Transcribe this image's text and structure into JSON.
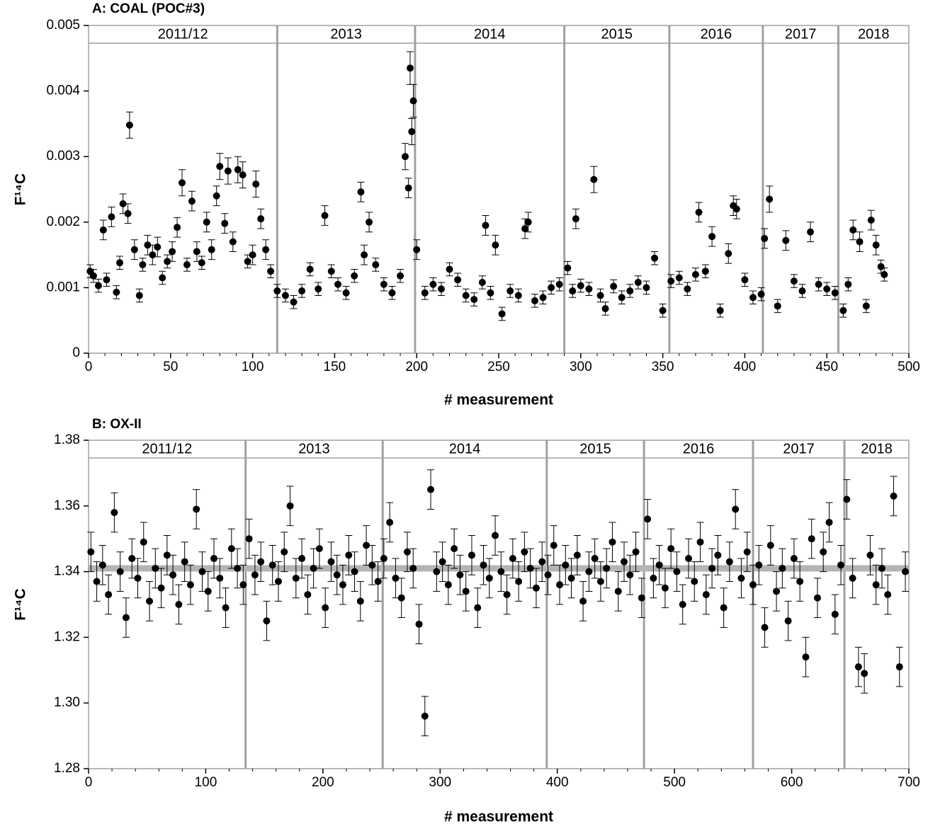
{
  "chart_data": [
    {
      "type": "scatter",
      "title": "A: COAL (POC#3)",
      "x_label": "# measurement",
      "y_label": "F¹⁴C",
      "xlim": [
        0,
        500
      ],
      "xticks": [
        0,
        50,
        100,
        150,
        200,
        250,
        300,
        350,
        400,
        450,
        500
      ],
      "x_minor_step": 10,
      "ylim": [
        0,
        0.005
      ],
      "yticks": [
        0,
        0.001,
        0.002,
        0.003,
        0.004,
        0.005
      ],
      "period_labels": [
        "2011/12",
        "2013",
        "2014",
        "2015",
        "2016",
        "2017",
        "2018"
      ],
      "period_breaks": [
        115,
        199,
        290,
        354,
        411,
        457
      ],
      "color": "#000000",
      "divider_color": "#a0a0a0",
      "x": [
        1,
        3,
        6,
        9,
        11,
        14,
        17,
        19,
        21,
        24,
        25,
        28,
        31,
        33,
        36,
        39,
        42,
        45,
        48,
        51,
        54,
        57,
        60,
        63,
        66,
        69,
        72,
        75,
        78,
        80,
        83,
        85,
        88,
        91,
        94,
        97,
        100,
        102,
        105,
        108,
        111,
        115,
        120,
        125,
        130,
        135,
        140,
        144,
        148,
        152,
        157,
        162,
        166,
        168,
        171,
        175,
        180,
        185,
        190,
        193,
        195,
        196,
        197,
        198,
        200,
        205,
        210,
        215,
        220,
        225,
        230,
        235,
        240,
        242,
        245,
        248,
        252,
        257,
        262,
        266,
        268,
        272,
        277,
        282,
        287,
        292,
        295,
        297,
        300,
        305,
        308,
        312,
        315,
        320,
        325,
        330,
        335,
        340,
        345,
        350,
        355,
        360,
        365,
        370,
        372,
        376,
        380,
        385,
        390,
        393,
        395,
        400,
        405,
        410,
        412,
        415,
        420,
        425,
        430,
        435,
        440,
        445,
        450,
        455,
        460,
        463,
        466,
        470,
        474,
        477,
        480,
        483,
        485
      ],
      "values": [
        0.00125,
        0.00118,
        0.00103,
        0.00188,
        0.00112,
        0.00208,
        0.00093,
        0.00138,
        0.00228,
        0.00213,
        0.00348,
        0.00158,
        0.00088,
        0.00135,
        0.00165,
        0.0015,
        0.00162,
        0.00115,
        0.0014,
        0.00155,
        0.00192,
        0.0026,
        0.00135,
        0.00232,
        0.00155,
        0.00138,
        0.002,
        0.00158,
        0.0024,
        0.00285,
        0.00198,
        0.00278,
        0.0017,
        0.0028,
        0.00272,
        0.0014,
        0.0015,
        0.00258,
        0.00205,
        0.00158,
        0.00125,
        0.00095,
        0.00088,
        0.00078,
        0.00095,
        0.00128,
        0.00098,
        0.0021,
        0.00125,
        0.00105,
        0.00092,
        0.00118,
        0.00246,
        0.0015,
        0.002,
        0.00135,
        0.00105,
        0.00092,
        0.00118,
        0.003,
        0.00252,
        0.00435,
        0.00338,
        0.00385,
        0.00158,
        0.00092,
        0.00105,
        0.00098,
        0.00128,
        0.00112,
        0.00088,
        0.00082,
        0.00108,
        0.00195,
        0.00092,
        0.00165,
        0.0006,
        0.00095,
        0.00088,
        0.0019,
        0.002,
        0.0008,
        0.00085,
        0.001,
        0.00105,
        0.0013,
        0.00095,
        0.00205,
        0.00103,
        0.00098,
        0.00265,
        0.00088,
        0.00068,
        0.00102,
        0.00085,
        0.00095,
        0.00108,
        0.001,
        0.00145,
        0.00065,
        0.0011,
        0.00115,
        0.00098,
        0.0012,
        0.00215,
        0.00125,
        0.00178,
        0.00065,
        0.00152,
        0.00225,
        0.0022,
        0.00112,
        0.00085,
        0.0009,
        0.00175,
        0.00235,
        0.00072,
        0.00172,
        0.0011,
        0.00095,
        0.00185,
        0.00105,
        0.00098,
        0.00092,
        0.00065,
        0.00105,
        0.00188,
        0.0017,
        0.00072,
        0.00203,
        0.00165,
        0.00132,
        0.0012
      ],
      "errors": [
        0.0001,
        0.0001,
        0.0001,
        0.00015,
        0.0001,
        0.00015,
        0.0001,
        0.0001,
        0.00015,
        0.00015,
        0.0002,
        0.00015,
        0.0001,
        0.0001,
        0.00015,
        0.00015,
        0.00015,
        0.0001,
        0.0001,
        0.00015,
        0.00015,
        0.0002,
        0.0001,
        0.00015,
        0.00015,
        0.0001,
        0.00015,
        0.00015,
        0.00015,
        0.0002,
        0.00015,
        0.0002,
        0.00015,
        0.0002,
        0.0002,
        0.0001,
        0.00015,
        0.0002,
        0.00015,
        0.00015,
        0.0001,
        0.0001,
        0.0001,
        0.0001,
        0.0001,
        0.0001,
        0.0001,
        0.00015,
        0.0001,
        0.0001,
        0.0001,
        0.0001,
        0.00015,
        0.00015,
        0.00015,
        0.0001,
        0.0001,
        0.0001,
        0.0001,
        0.0002,
        0.00015,
        0.00025,
        0.0002,
        0.00025,
        0.00015,
        0.0001,
        0.0001,
        0.0001,
        0.0001,
        0.0001,
        0.0001,
        0.0001,
        0.0001,
        0.00015,
        0.0001,
        0.00015,
        0.0001,
        0.0001,
        0.0001,
        0.00015,
        0.00015,
        0.0001,
        0.0001,
        0.0001,
        0.0001,
        0.0001,
        0.0001,
        0.00015,
        0.0001,
        0.0001,
        0.0002,
        0.0001,
        0.0001,
        0.0001,
        0.0001,
        0.0001,
        0.0001,
        0.0001,
        0.0001,
        0.0001,
        0.0001,
        0.0001,
        0.0001,
        0.0001,
        0.00015,
        0.0001,
        0.00015,
        0.0001,
        0.00015,
        0.00015,
        0.00015,
        0.0001,
        0.0001,
        0.0001,
        0.00015,
        0.0002,
        0.0001,
        0.00015,
        0.0001,
        0.0001,
        0.00015,
        0.0001,
        0.0001,
        0.0001,
        0.0001,
        0.0001,
        0.00015,
        0.00015,
        0.0001,
        0.00015,
        0.00015,
        0.0001,
        0.0001
      ]
    },
    {
      "type": "scatter",
      "title": "B: OX-II",
      "x_label": "# measurement",
      "y_label": "F¹⁴C",
      "xlim": [
        0,
        700
      ],
      "xticks": [
        0,
        100,
        200,
        300,
        400,
        500,
        600,
        700
      ],
      "x_minor_step": 20,
      "ylim": [
        1.28,
        1.38
      ],
      "yticks": [
        1.28,
        {
          "value": 1.3,
          "label": "1.30"
        },
        1.32,
        1.34,
        1.36,
        1.38
      ],
      "period_labels": [
        "2011/12",
        "2013",
        "2014",
        "2015",
        "2016",
        "2017",
        "2018"
      ],
      "period_breaks": [
        134,
        251,
        391,
        474,
        567,
        645
      ],
      "color": "#000000",
      "divider_color": "#a0a0a0",
      "reference_line": 1.341,
      "reference_color": "#b4b4b4",
      "error": 0.006,
      "x": [
        2,
        7,
        12,
        17,
        22,
        27,
        32,
        37,
        42,
        47,
        52,
        57,
        62,
        67,
        72,
        77,
        82,
        87,
        92,
        97,
        102,
        107,
        112,
        117,
        122,
        127,
        132,
        137,
        142,
        147,
        152,
        157,
        162,
        167,
        172,
        177,
        182,
        187,
        192,
        197,
        202,
        207,
        212,
        217,
        222,
        227,
        232,
        237,
        242,
        247,
        252,
        257,
        262,
        267,
        272,
        277,
        282,
        287,
        292,
        297,
        302,
        307,
        312,
        317,
        322,
        327,
        332,
        337,
        342,
        347,
        352,
        357,
        362,
        367,
        372,
        377,
        382,
        387,
        392,
        397,
        402,
        407,
        412,
        417,
        422,
        427,
        432,
        437,
        442,
        447,
        452,
        457,
        462,
        467,
        472,
        477,
        482,
        487,
        492,
        497,
        502,
        507,
        512,
        517,
        522,
        527,
        532,
        537,
        542,
        547,
        552,
        557,
        562,
        567,
        572,
        577,
        582,
        587,
        592,
        597,
        602,
        607,
        612,
        617,
        622,
        627,
        632,
        637,
        642,
        647,
        652,
        657,
        662,
        667,
        672,
        677,
        682,
        687,
        692,
        697
      ],
      "values": [
        1.346,
        1.337,
        1.342,
        1.333,
        1.358,
        1.34,
        1.326,
        1.344,
        1.338,
        1.349,
        1.331,
        1.341,
        1.335,
        1.345,
        1.339,
        1.33,
        1.343,
        1.336,
        1.359,
        1.34,
        1.334,
        1.344,
        1.338,
        1.329,
        1.347,
        1.341,
        1.336,
        1.35,
        1.339,
        1.343,
        1.325,
        1.342,
        1.337,
        1.346,
        1.36,
        1.338,
        1.344,
        1.333,
        1.341,
        1.347,
        1.329,
        1.343,
        1.339,
        1.336,
        1.345,
        1.34,
        1.331,
        1.348,
        1.342,
        1.337,
        1.344,
        1.355,
        1.338,
        1.332,
        1.346,
        1.341,
        1.324,
        1.296,
        1.365,
        1.34,
        1.343,
        1.336,
        1.347,
        1.339,
        1.334,
        1.345,
        1.329,
        1.342,
        1.338,
        1.351,
        1.34,
        1.333,
        1.344,
        1.337,
        1.346,
        1.341,
        1.335,
        1.343,
        1.339,
        1.348,
        1.336,
        1.342,
        1.338,
        1.345,
        1.331,
        1.34,
        1.344,
        1.337,
        1.341,
        1.349,
        1.334,
        1.343,
        1.339,
        1.346,
        1.332,
        1.356,
        1.338,
        1.342,
        1.335,
        1.347,
        1.34,
        1.33,
        1.344,
        1.337,
        1.349,
        1.333,
        1.341,
        1.345,
        1.329,
        1.343,
        1.359,
        1.338,
        1.346,
        1.336,
        1.342,
        1.323,
        1.348,
        1.334,
        1.341,
        1.325,
        1.344,
        1.337,
        1.314,
        1.35,
        1.332,
        1.346,
        1.355,
        1.327,
        1.342,
        1.362,
        1.338,
        1.311,
        1.309,
        1.345,
        1.336,
        1.341,
        1.333,
        1.363,
        1.311,
        1.34
      ]
    }
  ]
}
